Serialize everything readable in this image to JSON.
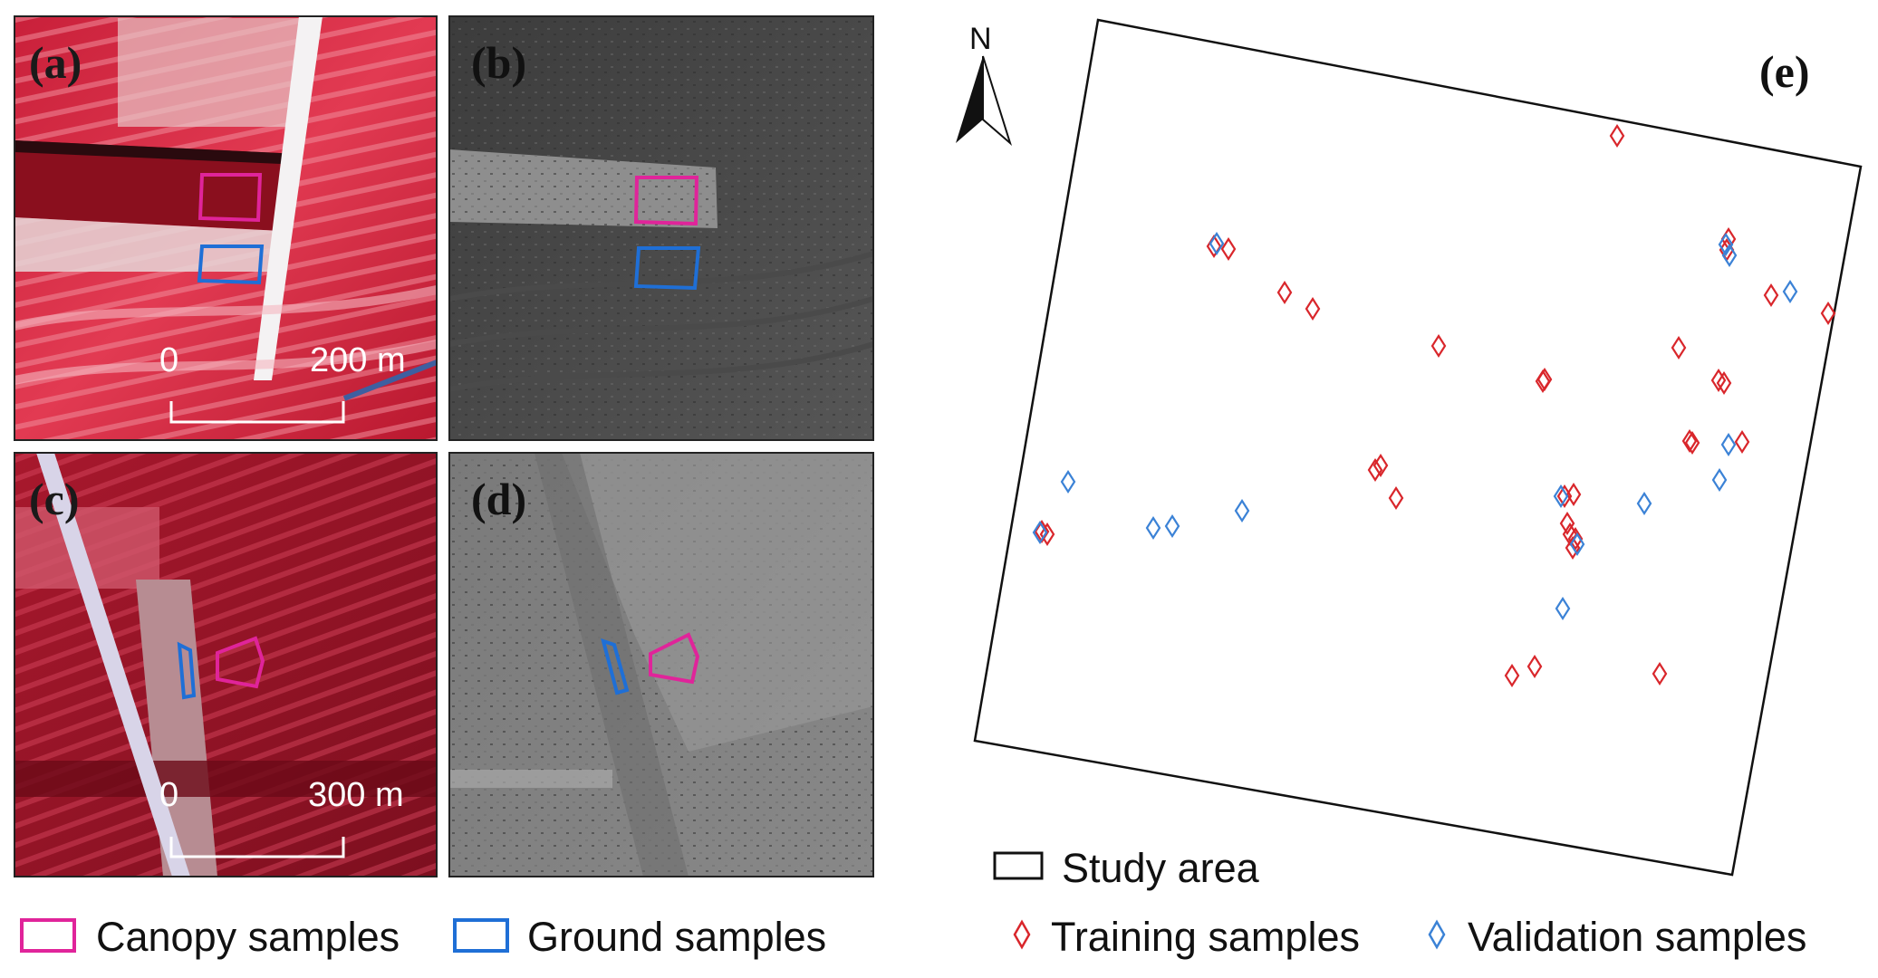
{
  "panels": {
    "a": {
      "label": "(a)",
      "scale_start": "0",
      "scale_end": "200 m"
    },
    "b": {
      "label": "(b)"
    },
    "c": {
      "label": "(c)",
      "scale_start": "0",
      "scale_end": "300 m"
    },
    "d": {
      "label": "(d)"
    },
    "e": {
      "label": "(e)",
      "north_label": "N"
    }
  },
  "legend_left": {
    "canopy": "Canopy samples",
    "ground": "Ground samples"
  },
  "legend_right": {
    "study_area": "Study area",
    "training": "Training samples",
    "validation": "Validation samples"
  },
  "colors": {
    "canopy": "#e0249a",
    "ground": "#1f6fd6",
    "training": "#d9262b",
    "validation": "#3b82d6",
    "study_area": "#111111"
  }
}
